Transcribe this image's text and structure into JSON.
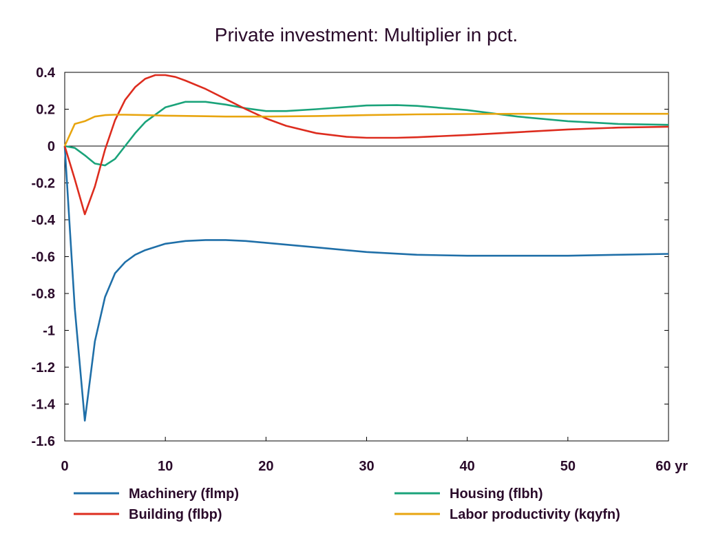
{
  "chart_data": {
    "type": "line",
    "title": "Private investment: Multiplier in pct.",
    "xlabel": "",
    "ylabel": "",
    "x_unit_label": "yr",
    "xlim": [
      0,
      60
    ],
    "ylim": [
      -1.6,
      0.4
    ],
    "x_ticks": [
      0,
      10,
      20,
      30,
      40,
      50,
      60
    ],
    "x_tick_labels": [
      "0",
      "10",
      "20",
      "30",
      "40",
      "50",
      "60 yr"
    ],
    "y_ticks": [
      0.4,
      0.2,
      0,
      -0.2,
      -0.4,
      -0.6,
      -0.8,
      -1,
      -1.2,
      -1.4,
      -1.6
    ],
    "y_tick_labels": [
      "0.4",
      "0.2",
      "0",
      "-0.2",
      "-0.4",
      "-0.6",
      "-0.8",
      "-1",
      "-1.2",
      "-1.4",
      "-1.6"
    ],
    "grid": false,
    "zero_line": true,
    "legend_position": "bottom",
    "series": [
      {
        "name": "Machinery (flmp)",
        "color": "#1f6fa8",
        "x": [
          0,
          1,
          2,
          3,
          4,
          5,
          6,
          7,
          8,
          10,
          12,
          14,
          16,
          18,
          20,
          25,
          30,
          35,
          40,
          45,
          50,
          55,
          60
        ],
        "y": [
          0,
          -0.88,
          -1.49,
          -1.06,
          -0.82,
          -0.69,
          -0.63,
          -0.59,
          -0.565,
          -0.53,
          -0.515,
          -0.51,
          -0.51,
          -0.515,
          -0.525,
          -0.55,
          -0.575,
          -0.59,
          -0.595,
          -0.595,
          -0.595,
          -0.59,
          -0.585
        ]
      },
      {
        "name": "Housing (flbh)",
        "color": "#1aa37a",
        "x": [
          0,
          1,
          2,
          3,
          4,
          5,
          6,
          7,
          8,
          10,
          12,
          14,
          16,
          18,
          20,
          22,
          25,
          30,
          33,
          35,
          40,
          45,
          50,
          55,
          60
        ],
        "y": [
          0,
          -0.01,
          -0.05,
          -0.095,
          -0.105,
          -0.07,
          0,
          0.07,
          0.13,
          0.21,
          0.24,
          0.24,
          0.225,
          0.205,
          0.19,
          0.19,
          0.2,
          0.22,
          0.222,
          0.218,
          0.195,
          0.16,
          0.135,
          0.12,
          0.115
        ]
      },
      {
        "name": "Building (flbp)",
        "color": "#dd2c1e",
        "x": [
          0,
          1,
          2,
          3,
          4,
          5,
          6,
          7,
          8,
          9,
          10,
          11,
          12,
          14,
          16,
          18,
          20,
          22,
          25,
          28,
          30,
          33,
          35,
          40,
          45,
          50,
          55,
          60
        ],
        "y": [
          0,
          -0.18,
          -0.37,
          -0.22,
          -0.02,
          0.14,
          0.25,
          0.32,
          0.365,
          0.385,
          0.385,
          0.375,
          0.355,
          0.31,
          0.255,
          0.2,
          0.15,
          0.11,
          0.07,
          0.05,
          0.045,
          0.045,
          0.048,
          0.06,
          0.075,
          0.09,
          0.1,
          0.105
        ]
      },
      {
        "name": "Labor productivity (kqyfn)",
        "color": "#e8a50f",
        "x": [
          0,
          1,
          2,
          3,
          4,
          5,
          6,
          8,
          10,
          14,
          16,
          18,
          20,
          25,
          30,
          35,
          40,
          45,
          50,
          55,
          60
        ],
        "y": [
          0,
          0.12,
          0.135,
          0.16,
          0.168,
          0.17,
          0.17,
          0.168,
          0.165,
          0.162,
          0.16,
          0.16,
          0.16,
          0.163,
          0.168,
          0.172,
          0.174,
          0.175,
          0.175,
          0.175,
          0.175
        ]
      }
    ]
  }
}
